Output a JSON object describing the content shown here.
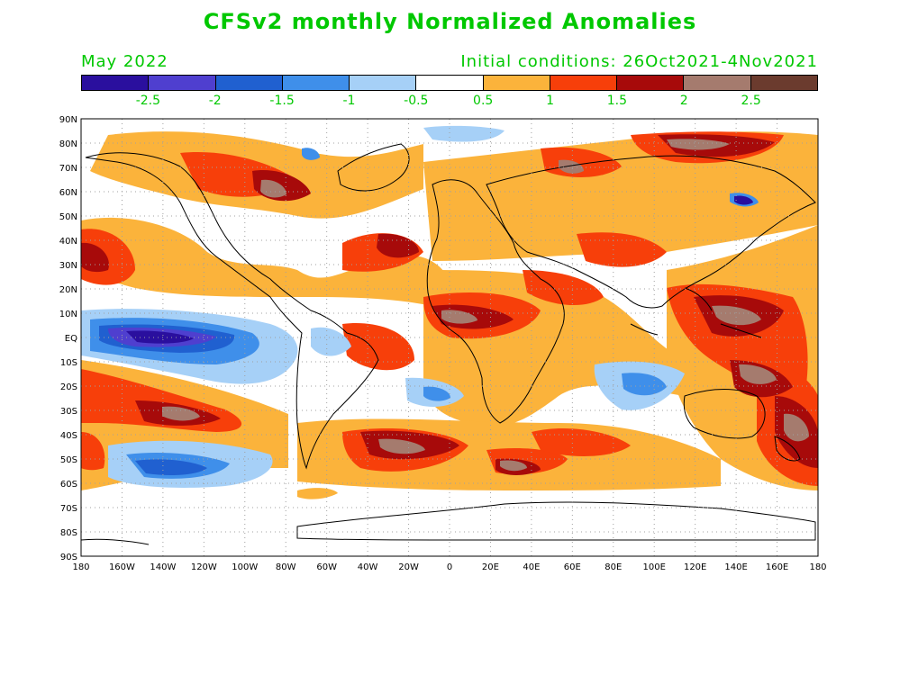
{
  "title": "CFSv2 monthly Normalized Anomalies",
  "month": "May 2022",
  "initial_conditions": "Initial conditions: 26Oct2021-4Nov2021",
  "colorbar": {
    "colors": [
      "#2a0f9e",
      "#4f3fcf",
      "#2060d0",
      "#3f8fea",
      "#a6d0f7",
      "#ffffff",
      "#fbb33b",
      "#f73f0a",
      "#a70a0a",
      "#a57b6e",
      "#6b3b2e"
    ],
    "labels": [
      "-2.5",
      "-2",
      "-1.5",
      "-1",
      "-0.5",
      "0.5",
      "1",
      "1.5",
      "2",
      "2.5"
    ]
  },
  "map": {
    "lat_labels": [
      "90N",
      "80N",
      "70N",
      "60N",
      "50N",
      "40N",
      "30N",
      "20N",
      "10N",
      "EQ",
      "10S",
      "20S",
      "30S",
      "40S",
      "50S",
      "60S",
      "70S",
      "80S",
      "90S"
    ],
    "lon_labels": [
      "180",
      "160W",
      "140W",
      "120W",
      "100W",
      "80W",
      "60W",
      "40W",
      "20W",
      "0",
      "20E",
      "40E",
      "60E",
      "80E",
      "100E",
      "120E",
      "140E",
      "160E",
      "180"
    ]
  }
}
